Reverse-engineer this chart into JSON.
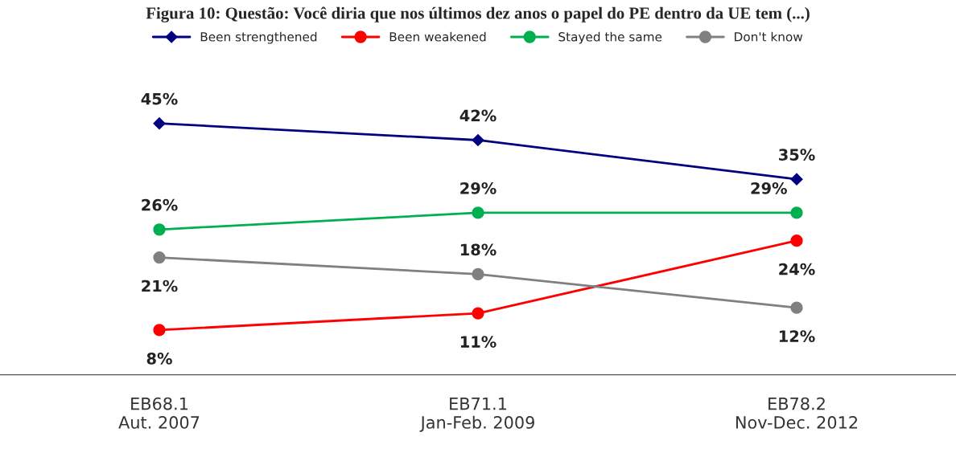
{
  "chart_data": {
    "type": "line",
    "title": "Figura 10: Questão: Você diria que nos últimos dez anos o papel do PE dentro da UE tem (...)",
    "categories": [
      "EB68.1\nAut. 2007",
      "EB71.1\nJan-Feb. 2009",
      "EB78.2\nNov-Dec. 2012"
    ],
    "series": [
      {
        "name": "Been strengthened",
        "color": "#000080",
        "values": [
          45,
          42,
          35
        ],
        "value_labels": [
          "45%",
          "42%",
          "35%"
        ],
        "marker": "diamond"
      },
      {
        "name": "Been weakened",
        "color": "#ff0000",
        "values": [
          8,
          11,
          24
        ],
        "value_labels": [
          "8%",
          "11%",
          "24%"
        ],
        "marker": "circle"
      },
      {
        "name": "Stayed the same",
        "color": "#00b050",
        "values": [
          26,
          29,
          29
        ],
        "value_labels": [
          "26%",
          "29%",
          "29%"
        ],
        "marker": "circle"
      },
      {
        "name": "Don't know",
        "color": "#808080",
        "values": [
          21,
          18,
          12
        ],
        "value_labels": [
          "21%",
          "18%",
          "12%"
        ],
        "marker": "circle"
      }
    ],
    "legend": "top",
    "grid": false
  }
}
